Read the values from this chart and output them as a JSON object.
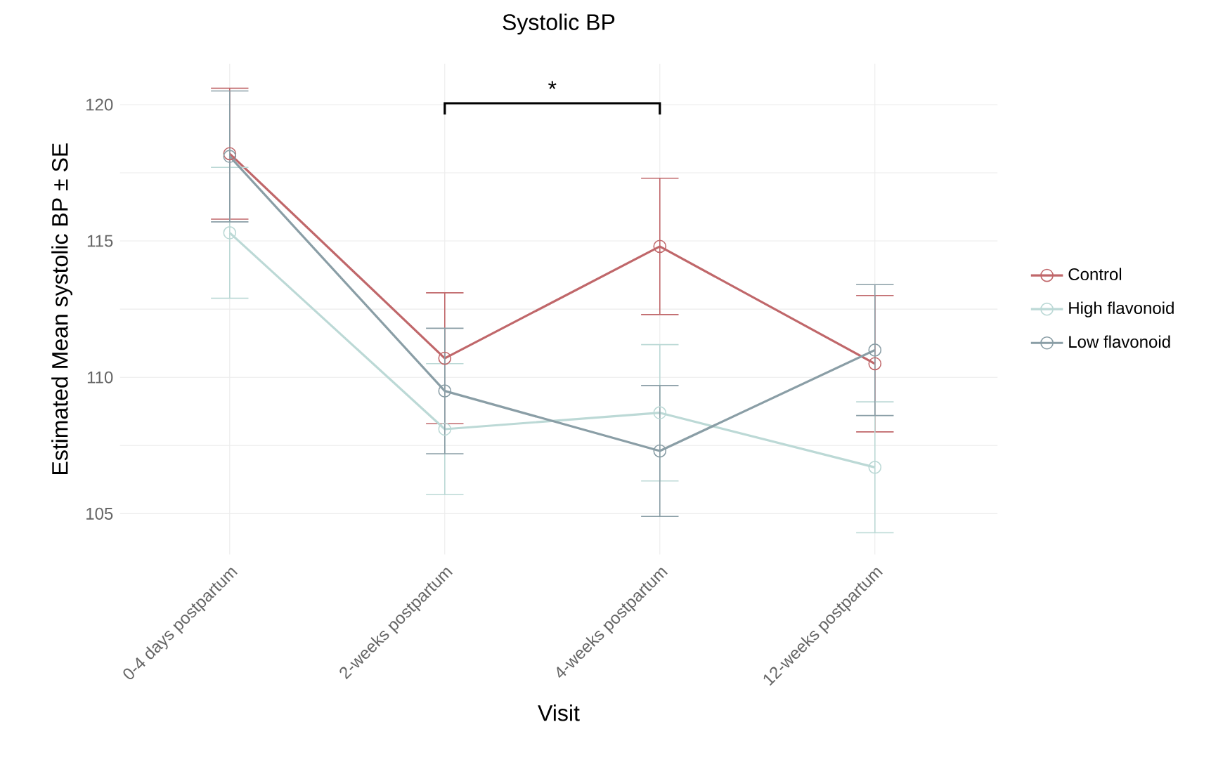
{
  "chart_data": {
    "type": "line",
    "title": "Systolic BP",
    "xlabel": "Visit",
    "ylabel": "Estimated Mean systolic BP ± SE",
    "categories": [
      "0-4 days postpartum",
      "2-weeks postpartum",
      "4-weeks postpartum",
      "12-weeks postpartum"
    ],
    "series": [
      {
        "name": "Control",
        "color": "#c0676a",
        "values": [
          118.2,
          110.7,
          114.8,
          110.5
        ],
        "errors": [
          2.4,
          2.4,
          2.5,
          2.5
        ]
      },
      {
        "name": "High flavonoid",
        "color": "#bcd9d6",
        "values": [
          115.3,
          108.1,
          108.7,
          106.7
        ],
        "errors": [
          2.4,
          2.4,
          2.5,
          2.4
        ]
      },
      {
        "name": "Low flavonoid",
        "color": "#8a9ea6",
        "values": [
          118.1,
          109.5,
          107.3,
          111.0
        ],
        "errors": [
          2.4,
          2.3,
          2.4,
          2.4
        ]
      }
    ],
    "ylim": [
      103.5,
      121.5
    ],
    "yticks": [
      105,
      110,
      115,
      120
    ],
    "annotations": [
      "*"
    ],
    "grid": true,
    "legend": "right",
    "marker": "circle",
    "line_style": "solid"
  }
}
